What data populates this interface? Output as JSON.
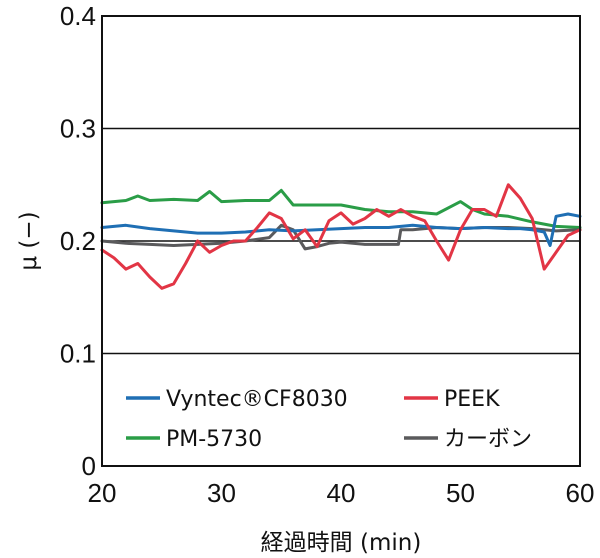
{
  "chart_data": {
    "type": "line",
    "xlabel": "経過時間 (min)",
    "ylabel": "μ (−)",
    "xlim": [
      20,
      60
    ],
    "ylim": [
      0,
      0.4
    ],
    "x_ticks": [
      "20",
      "30",
      "40",
      "50",
      "60"
    ],
    "y_ticks": [
      "0",
      "0.1",
      "0.2",
      "0.3",
      "0.4"
    ],
    "grid": "horizontal",
    "legend_position": "bottom-inside",
    "series": [
      {
        "name": "Vyntec®CF8030",
        "color": "#1f6fb4",
        "x": [
          20,
          22,
          24,
          26,
          28,
          30,
          32,
          34,
          36,
          38,
          40,
          42,
          44,
          46,
          48,
          50,
          52,
          54,
          55,
          56,
          57,
          57.5,
          58,
          59,
          60
        ],
        "y": [
          0.212,
          0.214,
          0.211,
          0.209,
          0.207,
          0.207,
          0.208,
          0.21,
          0.209,
          0.21,
          0.211,
          0.212,
          0.212,
          0.214,
          0.212,
          0.211,
          0.212,
          0.211,
          0.211,
          0.21,
          0.208,
          0.196,
          0.222,
          0.224,
          0.222
        ]
      },
      {
        "name": "PEEK",
        "color": "#e23545",
        "x": [
          20,
          21,
          22,
          23,
          24,
          25,
          26,
          27,
          28,
          29,
          30,
          31,
          32,
          33,
          34,
          35,
          36,
          37,
          38,
          39,
          40,
          41,
          42,
          43,
          44,
          45,
          46,
          47,
          48,
          49,
          50,
          51,
          52,
          53,
          54,
          55,
          56,
          57,
          58,
          59,
          60
        ],
        "y": [
          0.192,
          0.185,
          0.175,
          0.18,
          0.168,
          0.158,
          0.162,
          0.18,
          0.2,
          0.19,
          0.196,
          0.2,
          0.2,
          0.212,
          0.225,
          0.22,
          0.202,
          0.21,
          0.195,
          0.218,
          0.225,
          0.215,
          0.22,
          0.228,
          0.222,
          0.228,
          0.222,
          0.218,
          0.2,
          0.183,
          0.21,
          0.228,
          0.228,
          0.222,
          0.25,
          0.238,
          0.22,
          0.175,
          0.19,
          0.205,
          0.21
        ]
      },
      {
        "name": "PM-5730",
        "color": "#2a9d47",
        "x": [
          20,
          22,
          23,
          24,
          26,
          28,
          29,
          30,
          32,
          34,
          35,
          36,
          38,
          40,
          42,
          44,
          46,
          48,
          50,
          51,
          52,
          54,
          56,
          58,
          60
        ],
        "y": [
          0.234,
          0.236,
          0.24,
          0.236,
          0.237,
          0.236,
          0.244,
          0.235,
          0.236,
          0.236,
          0.245,
          0.232,
          0.232,
          0.232,
          0.228,
          0.226,
          0.226,
          0.224,
          0.235,
          0.228,
          0.224,
          0.222,
          0.217,
          0.213,
          0.212
        ]
      },
      {
        "name": "カーボン",
        "color": "#5a5a5c",
        "x": [
          20,
          22,
          24,
          26,
          28,
          30,
          32,
          34,
          35,
          36,
          37,
          38,
          39,
          40,
          42,
          44,
          44.8,
          45,
          46,
          48,
          50,
          52,
          54,
          56,
          58,
          60
        ],
        "y": [
          0.2,
          0.198,
          0.197,
          0.196,
          0.197,
          0.198,
          0.2,
          0.203,
          0.214,
          0.21,
          0.193,
          0.195,
          0.198,
          0.199,
          0.197,
          0.197,
          0.197,
          0.21,
          0.21,
          0.212,
          0.211,
          0.212,
          0.212,
          0.211,
          0.209,
          0.21
        ]
      }
    ]
  }
}
